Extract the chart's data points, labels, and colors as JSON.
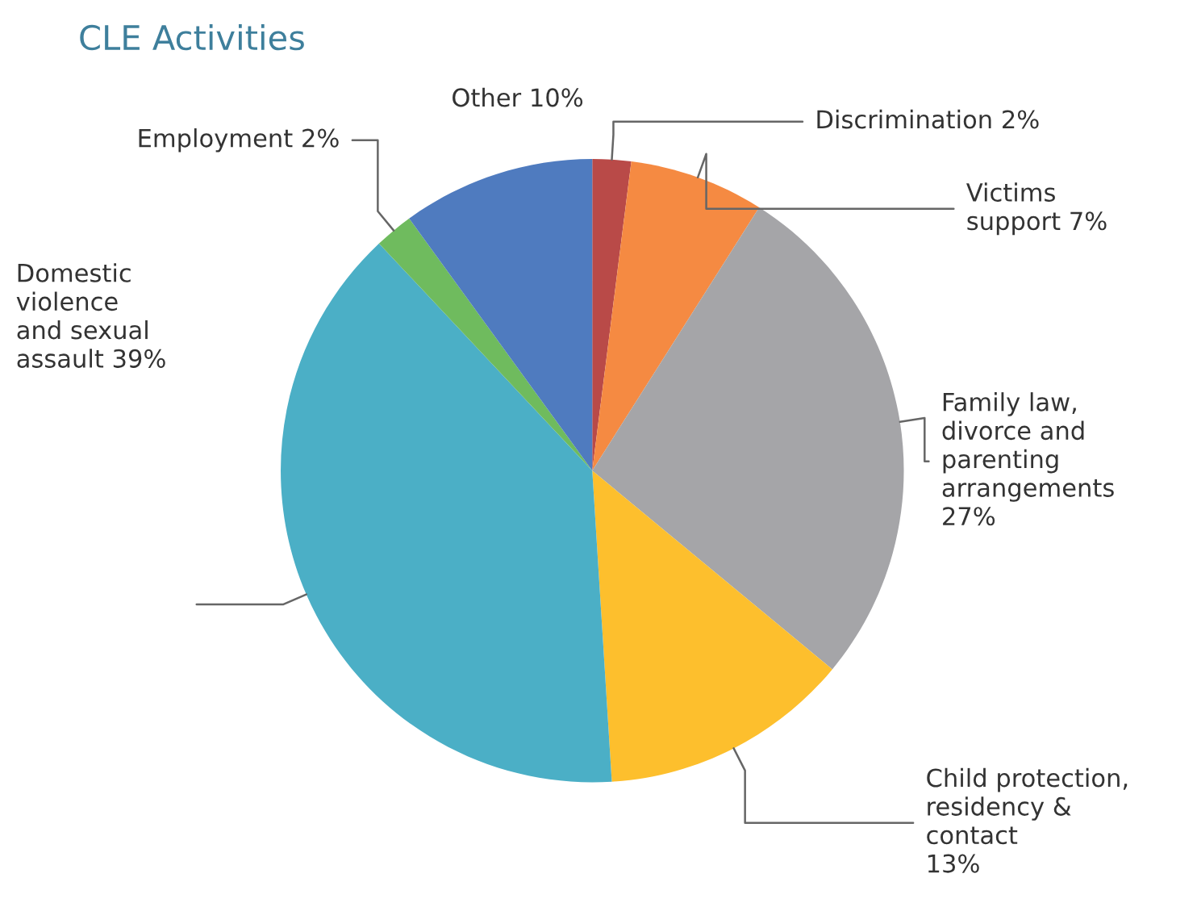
{
  "chart_data": {
    "type": "pie",
    "title": "CLE Activities",
    "categories": [
      "Discrimination",
      "Victims\nsupport",
      "Family law,\ndivorce and\nparenting\narrangements",
      "Child protection,\nresidency &\ncontact",
      "Domestic\nviolence\nand sexual\nassault",
      "Employment",
      "Other"
    ],
    "values": [
      2,
      7,
      27,
      13,
      39,
      2,
      10
    ],
    "value_labels": [
      "2%",
      "7%",
      "27%",
      "13%",
      "39%",
      "2%",
      "10%"
    ],
    "colors": [
      "#b94a48",
      "#f58a42",
      "#a5a5a8",
      "#fdbf2d",
      "#4bafc6",
      "#6fbb5e",
      "#4f7bbf"
    ]
  }
}
